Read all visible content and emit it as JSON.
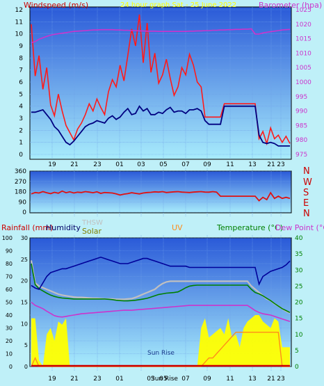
{
  "colors": {
    "background": "#bff0f8",
    "plot_top": "#2a64dc",
    "plot_bottom": "#9ee6fa",
    "windspeed_gust": "#ff1a1a",
    "windspeed_avg": "#000080",
    "barometer": "#cc33cc",
    "direction_labels": "#cc0000",
    "humidity": "#000099",
    "temperature": "#008000",
    "dew_point": "#cc33cc",
    "thsw": "#c0c0c0",
    "solar": "#ffff00",
    "uv": "#ff8c1a",
    "rain": "#cc0000"
  },
  "texts": {
    "title": "24 hour graph Sat - 25 June 2022",
    "windspeed": "Windspeed (m/s)",
    "barometer": "Barometer (hpa)",
    "rainfall": "Rainfall (mm)",
    "humidity": "Humidity",
    "thsw": "THSW",
    "solar": "Solar",
    "uv": "UV",
    "temperature": "Temperature (°C)",
    "dew_point": "Dew Point (°C)",
    "sun_rise": "Sun Rise",
    "sun_rise_short": "Sun Rise"
  },
  "chart_data": [
    {
      "type": "line",
      "title": "24 hour graph Sat - 25 June 2022",
      "x_tick_labels": [
        "19",
        "21",
        "23",
        "01",
        "03",
        "05",
        "07",
        "09",
        "11",
        "13",
        "21",
        "23"
      ],
      "ylabel": "Windspeed (m/s)",
      "ylim": [
        0,
        12
      ],
      "y_ticks": [
        0,
        1,
        2,
        3,
        4,
        5,
        6,
        7,
        8,
        9,
        10,
        11,
        12
      ],
      "y2label": "Barometer (hpa)",
      "y2lim": [
        975,
        1025
      ],
      "y2_ticks": [
        975,
        980,
        985,
        990,
        995,
        1000,
        1005,
        1010,
        1015,
        1020,
        1025
      ],
      "grid": true,
      "series": [
        {
          "name": "Windspeed (m/s)",
          "role": "gust",
          "values": [
            10.8,
            6.5,
            8.2,
            5.4,
            7.2,
            4.1,
            3.2,
            5.0,
            3.6,
            2.4,
            1.8,
            1.2,
            2.1,
            2.6,
            3.3,
            4.2,
            3.6,
            4.6,
            3.9,
            3.3,
            5.2,
            6.2,
            5.6,
            7.4,
            6.1,
            8.2,
            10.4,
            9.0,
            11.6,
            7.6,
            10.9,
            6.8,
            8.4,
            5.9,
            6.6,
            7.9,
            6.3,
            4.9,
            5.6,
            7.2,
            6.6,
            8.3,
            7.4,
            6.0,
            5.6,
            3.1,
            3.1,
            3.1,
            3.1,
            3.1,
            4.2,
            4.2,
            4.2,
            4.2,
            4.2,
            4.2,
            4.2,
            4.2,
            4.2,
            1.3,
            1.9,
            0.9,
            2.2,
            1.3,
            1.6,
            1.0,
            1.5,
            0.9
          ]
        },
        {
          "name": "Windspeed average",
          "role": "average",
          "values": [
            3.5,
            3.5,
            3.6,
            3.7,
            3.3,
            2.9,
            2.3,
            2.0,
            1.5,
            1.0,
            0.8,
            1.1,
            1.5,
            1.9,
            2.3,
            2.5,
            2.6,
            2.8,
            2.7,
            2.6,
            3.0,
            3.2,
            2.9,
            3.1,
            3.5,
            3.8,
            3.3,
            3.4,
            4.0,
            3.6,
            3.8,
            3.3,
            3.3,
            3.5,
            3.4,
            3.7,
            3.9,
            3.5,
            3.6,
            3.6,
            3.4,
            3.7,
            3.7,
            3.8,
            3.6,
            2.8,
            2.5,
            2.5,
            2.5,
            2.5,
            4.0,
            4.0,
            4.0,
            4.0,
            4.0,
            4.0,
            4.0,
            4.0,
            4.0,
            1.6,
            1.0,
            0.9,
            1.0,
            0.9,
            0.7,
            0.7,
            0.7,
            0.7
          ]
        },
        {
          "name": "Barometer (hpa)",
          "values": [
            1013.6,
            1014.0,
            1014.8,
            1015.3,
            1015.8,
            1016.2,
            1016.5,
            1016.7,
            1016.9,
            1017.1,
            1017.3,
            1017.5,
            1017.6,
            1017.7,
            1017.8,
            1017.9,
            1018.0,
            1018.0,
            1018.1,
            1018.1,
            1018.1,
            1018.1,
            1018.0,
            1018.0,
            1017.9,
            1017.9,
            1017.8,
            1017.8,
            1017.7,
            1017.7,
            1017.6,
            1017.6,
            1017.6,
            1017.5,
            1017.5,
            1017.5,
            1017.5,
            1017.5,
            1017.5,
            1017.5,
            1017.5,
            1017.6,
            1017.6,
            1017.7,
            1017.7,
            1017.8,
            1017.8,
            1017.9,
            1017.9,
            1018.0,
            1018.0,
            1018.1,
            1018.1,
            1018.2,
            1018.2,
            1018.3,
            1018.3,
            1018.4,
            1016.6,
            1016.6,
            1017.0,
            1017.2,
            1017.4,
            1017.6,
            1017.8,
            1018.0,
            1018.1,
            1018.2
          ]
        }
      ]
    },
    {
      "type": "line",
      "x_tick_labels": [
        "19",
        "21",
        "23",
        "01",
        "03",
        "05",
        "07",
        "09",
        "11",
        "13",
        "21",
        "23"
      ],
      "y_ticks": [
        0,
        90,
        180,
        270,
        360
      ],
      "ylim": [
        0,
        360
      ],
      "right_labels": [
        "N",
        "W",
        "S",
        "E",
        "N"
      ],
      "grid": true,
      "series": [
        {
          "name": "Wind direction",
          "values": [
            160,
            172,
            168,
            180,
            170,
            162,
            174,
            166,
            185,
            170,
            178,
            168,
            175,
            172,
            180,
            176,
            170,
            178,
            165,
            172,
            170,
            168,
            160,
            150,
            158,
            162,
            170,
            165,
            160,
            168,
            172,
            174,
            178,
            176,
            180,
            172,
            175,
            178,
            180,
            176,
            174,
            172,
            176,
            178,
            180,
            176,
            175,
            180,
            176,
            140,
            140,
            140,
            140,
            140,
            140,
            140,
            140,
            140,
            140,
            100,
            130,
            110,
            170,
            120,
            140,
            120,
            130,
            120
          ]
        }
      ]
    },
    {
      "type": "area",
      "x_tick_labels": [
        "19",
        "21",
        "23",
        "01",
        "03",
        "05",
        "07",
        "09",
        "11",
        "13",
        "21",
        "23"
      ],
      "ylabel": "Rainfall (mm)",
      "ylim": [
        0,
        30
      ],
      "y_ticks": [
        0,
        5,
        10,
        15,
        20,
        25,
        30
      ],
      "humidity_ylim": [
        0,
        100
      ],
      "humidity_ticks": [
        0,
        10,
        20,
        30,
        40,
        50,
        60,
        70,
        80,
        90,
        100
      ],
      "y2label": "Temperature (°C)",
      "y2lim": [
        0,
        40
      ],
      "y2_ticks": [
        0,
        5,
        10,
        15,
        20,
        25,
        30,
        35,
        40
      ],
      "annotations": [
        "Sun Rise"
      ],
      "grid": true,
      "series": [
        {
          "name": "Humidity",
          "values": [
            63,
            61,
            60,
            65,
            70,
            73,
            74,
            75,
            76,
            76,
            77,
            78,
            79,
            80,
            81,
            82,
            83,
            84,
            85,
            84,
            83,
            82,
            81,
            80,
            80,
            80,
            81,
            82,
            83,
            84,
            84,
            83,
            82,
            81,
            80,
            79,
            78,
            78,
            78,
            78,
            78,
            77,
            77,
            77,
            77,
            77,
            77,
            77,
            77,
            77,
            77,
            77,
            77,
            77,
            77,
            77,
            77,
            77,
            77,
            64,
            70,
            72,
            74,
            75,
            76,
            77,
            79,
            82
          ]
        },
        {
          "name": "Temperature (°C)",
          "values": [
            32,
            25.5,
            24.2,
            23.5,
            22.8,
            22.2,
            21.8,
            21.5,
            21.3,
            21.2,
            21.1,
            21.0,
            21.0,
            21.0,
            21.0,
            21.0,
            21.0,
            21.0,
            21.0,
            21.0,
            20.9,
            20.8,
            20.6,
            20.5,
            20.4,
            20.4,
            20.5,
            20.6,
            20.8,
            21.0,
            21.2,
            21.6,
            22.0,
            22.4,
            22.6,
            22.8,
            22.9,
            23.0,
            23.2,
            23.8,
            24.5,
            25.0,
            25.2,
            25.3,
            25.3,
            25.3,
            25.3,
            25.3,
            25.3,
            25.3,
            25.3,
            25.3,
            25.3,
            25.3,
            25.3,
            25.3,
            25.3,
            24.0,
            23.0,
            22.6,
            22.0,
            21.2,
            20.5,
            19.6,
            18.8,
            18.0,
            17.4,
            16.8
          ]
        },
        {
          "name": "Dew Point (°C)",
          "values": [
            20,
            19.0,
            18.5,
            18.0,
            17.2,
            16.5,
            15.8,
            15.5,
            15.4,
            15.6,
            15.8,
            16.0,
            16.2,
            16.4,
            16.5,
            16.6,
            16.7,
            16.8,
            16.9,
            17.0,
            17.1,
            17.2,
            17.3,
            17.4,
            17.5,
            17.5,
            17.5,
            17.6,
            17.7,
            17.8,
            17.9,
            18.0,
            18.1,
            18.2,
            18.3,
            18.4,
            18.5,
            18.6,
            18.7,
            18.8,
            18.9,
            19.0,
            19.0,
            19.0,
            19.0,
            19.0,
            19.0,
            19.0,
            19.0,
            19.0,
            19.0,
            19.0,
            19.0,
            19.0,
            19.0,
            19.0,
            19.0,
            18.2,
            17.4,
            16.8,
            16.4,
            16.2,
            16.0,
            15.6,
            15.2,
            14.8,
            14.4,
            14.0
          ]
        },
        {
          "name": "THSW",
          "values": [
            33,
            26,
            25,
            24.5,
            24,
            23.5,
            23,
            22.5,
            22.2,
            22.0,
            21.8,
            21.6,
            21.5,
            21.5,
            21.4,
            21.3,
            21.2,
            21.2,
            21.1,
            21.0,
            21.0,
            21.0,
            20.9,
            20.9,
            20.9,
            21.0,
            21.1,
            21.5,
            22.0,
            22.5,
            23.0,
            23.5,
            24.0,
            25.0,
            25.8,
            26.3,
            26.5,
            26.5,
            26.5,
            26.5,
            26.5,
            26.5,
            26.5,
            26.5,
            26.5,
            26.5,
            26.5,
            26.5,
            26.5,
            26.5,
            26.5,
            26.5,
            26.5,
            26.5,
            26.5,
            26.5,
            26.5,
            25.0,
            24.0,
            23.0,
            22.0,
            21.0,
            20.5,
            19.5,
            18.8,
            18.0,
            17.2,
            16.6
          ]
        },
        {
          "name": "Solar",
          "values": [
            15,
            15,
            2,
            0,
            10,
            12,
            8,
            14,
            13,
            15,
            0,
            0,
            0,
            0,
            0,
            0,
            0,
            0,
            0,
            0,
            0,
            0,
            0,
            0,
            0,
            0,
            0,
            0,
            0,
            0,
            0,
            0,
            0,
            0,
            0,
            0,
            0,
            0,
            0,
            0,
            0,
            0,
            0,
            0,
            12,
            15,
            9,
            10,
            11,
            12,
            10,
            15,
            9,
            10,
            6,
            12,
            14,
            15,
            16,
            16,
            14,
            13,
            12,
            15,
            14,
            6,
            6,
            6
          ]
        },
        {
          "name": "UV",
          "values": [
            0,
            2,
            0,
            0,
            0,
            0,
            0,
            0,
            0,
            0,
            0,
            0,
            0,
            0,
            0,
            0,
            0,
            0,
            0,
            0,
            0,
            0,
            0,
            0,
            0,
            0,
            0,
            0,
            0,
            0,
            0,
            0,
            0,
            0,
            0,
            0,
            0,
            0,
            0,
            0,
            0,
            0,
            0,
            0,
            0,
            1,
            2,
            2,
            3,
            4,
            5,
            6,
            7,
            8,
            8,
            8,
            8,
            8,
            8,
            8,
            8,
            8,
            8,
            8,
            8,
            0,
            0,
            0
          ]
        },
        {
          "name": "Rainfall (mm)",
          "values": [
            0,
            0,
            0,
            0,
            0,
            0,
            0,
            0,
            0,
            0,
            0,
            0,
            0,
            0,
            0,
            0,
            0,
            0,
            0,
            0,
            0,
            0,
            0,
            0,
            0,
            0,
            0,
            0,
            0,
            0,
            0,
            0,
            0,
            0,
            0,
            0,
            0,
            0,
            0,
            0,
            0,
            0,
            0,
            0,
            0,
            0,
            0,
            0,
            0,
            0,
            0,
            0,
            0,
            0,
            0,
            0,
            0,
            0,
            0,
            0,
            0,
            0,
            0,
            0,
            0,
            0,
            0,
            0
          ]
        }
      ]
    }
  ]
}
